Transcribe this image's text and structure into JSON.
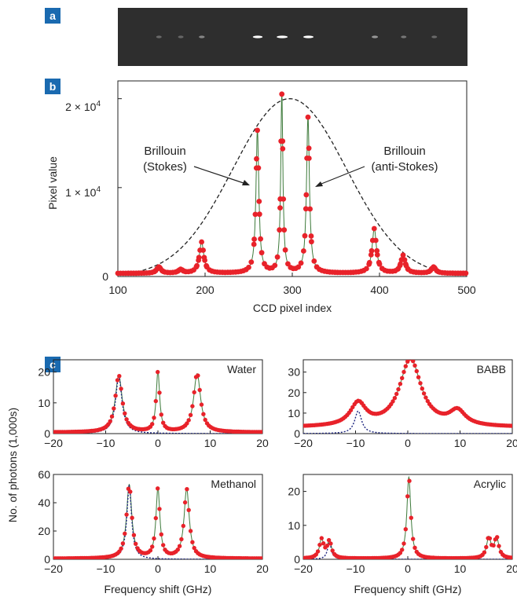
{
  "colors": {
    "panel_label_bg": "#1a6ab0",
    "points": "#e8222a",
    "fit_line": "#3d7a3a",
    "envelope": "#222222",
    "lorentz_fit": "#1a237e",
    "ccd_bg": "#2e2e2e"
  },
  "panel_labels": {
    "a": "a",
    "b": "b",
    "c": "c"
  },
  "chart_data": [
    {
      "id": "panel-b",
      "type": "scatter",
      "xlabel": "CCD pixel index",
      "ylabel": "Pixel value",
      "xlim": [
        100,
        500
      ],
      "ylim": [
        0,
        22000
      ],
      "xticks": [
        "100",
        "200",
        "300",
        "400",
        "500"
      ],
      "yticks": [
        {
          "value": 0,
          "label": "0"
        },
        {
          "value": 10000,
          "label": "1 × 10",
          "exp": "4"
        },
        {
          "value": 20000,
          "label": "2 × 10",
          "exp": "4"
        }
      ],
      "annotations": {
        "stokes": [
          "Brillouin",
          "(Stokes)"
        ],
        "antistokes": [
          "Brillouin",
          "(anti-Stokes)"
        ]
      },
      "envelope": {
        "center": 297,
        "sigma": 65,
        "amplitude": 20000
      },
      "baseline": 350,
      "peaks": [
        {
          "x": 147,
          "height": 700,
          "width": 3
        },
        {
          "x": 172,
          "height": 400,
          "width": 3
        },
        {
          "x": 196,
          "height": 3500,
          "width": 3
        },
        {
          "x": 260,
          "height": 16000,
          "width": 2
        },
        {
          "x": 288,
          "height": 20000,
          "width": 1.5
        },
        {
          "x": 318,
          "height": 17500,
          "width": 2
        },
        {
          "x": 394,
          "height": 5000,
          "width": 3
        },
        {
          "x": 427,
          "height": 2000,
          "width": 3
        },
        {
          "x": 462,
          "height": 700,
          "width": 3
        }
      ]
    },
    {
      "id": "panel-c-water",
      "type": "scatter",
      "title": "Water",
      "xlim": [
        -20,
        20
      ],
      "ylim": [
        0,
        24
      ],
      "xticks": [
        -20,
        -10,
        0,
        10,
        20
      ],
      "yticks": [
        0,
        10,
        20
      ],
      "baseline": 0.4,
      "peaks": [
        {
          "x": -7.5,
          "height": 18.5,
          "width": 0.8
        },
        {
          "x": 0,
          "height": 19.5,
          "width": 0.4
        },
        {
          "x": 7.5,
          "height": 19.0,
          "width": 0.8
        }
      ],
      "fit_peak": {
        "x": -7.5,
        "height": 18.5,
        "width": 0.75
      }
    },
    {
      "id": "panel-c-babb",
      "type": "scatter",
      "title": "BABB",
      "xlim": [
        -20,
        20
      ],
      "ylim": [
        0,
        36
      ],
      "xticks": [
        -20,
        -10,
        0,
        10,
        20
      ],
      "yticks": [
        0,
        10,
        20,
        30
      ],
      "baseline": 3,
      "peaks": [
        {
          "x": -9.5,
          "height": 11,
          "width": 1.8
        },
        {
          "x": 0.5,
          "height": 33,
          "width": 2.5
        },
        {
          "x": 9.5,
          "height": 7,
          "width": 1.8
        }
      ],
      "fit_peak": {
        "x": -9.5,
        "height": 11,
        "width": 0.8
      }
    },
    {
      "id": "panel-c-methanol",
      "type": "scatter",
      "title": "Methanol",
      "xlim": [
        -20,
        20
      ],
      "ylim": [
        0,
        60
      ],
      "xticks": [
        -20,
        -10,
        0,
        10,
        20
      ],
      "yticks": [
        0,
        20,
        40,
        60
      ],
      "baseline": 0.5,
      "peaks": [
        {
          "x": -5.5,
          "height": 52,
          "width": 0.6
        },
        {
          "x": 0,
          "height": 49,
          "width": 0.45
        },
        {
          "x": 5.5,
          "height": 49,
          "width": 0.6
        }
      ],
      "fit_peak": {
        "x": -5.5,
        "height": 52,
        "width": 0.55
      }
    },
    {
      "id": "panel-c-acrylic",
      "type": "scatter",
      "title": "Acrylic",
      "xlim": [
        -20,
        20
      ],
      "ylim": [
        0,
        25
      ],
      "xticks": [
        -20,
        -10,
        0,
        10,
        20
      ],
      "yticks": [
        0,
        10,
        20
      ],
      "baseline": 0.2,
      "peaks": [
        {
          "x": -16.5,
          "height": 5.5,
          "width": 0.5
        },
        {
          "x": -15,
          "height": 5,
          "width": 0.5
        },
        {
          "x": 0.2,
          "height": 24,
          "width": 0.45
        },
        {
          "x": 15.5,
          "height": 6,
          "width": 0.5
        },
        {
          "x": 17,
          "height": 6,
          "width": 0.5
        }
      ],
      "fit_peak": {
        "x": -15,
        "height": 5,
        "width": 0.45
      }
    }
  ],
  "shared_labels": {
    "c_ylabel": "No. of photons  (1,000s)",
    "c_xlabel_left": "Frequency shift (GHz)",
    "c_xlabel_right": "Frequency shift (GHz)"
  }
}
